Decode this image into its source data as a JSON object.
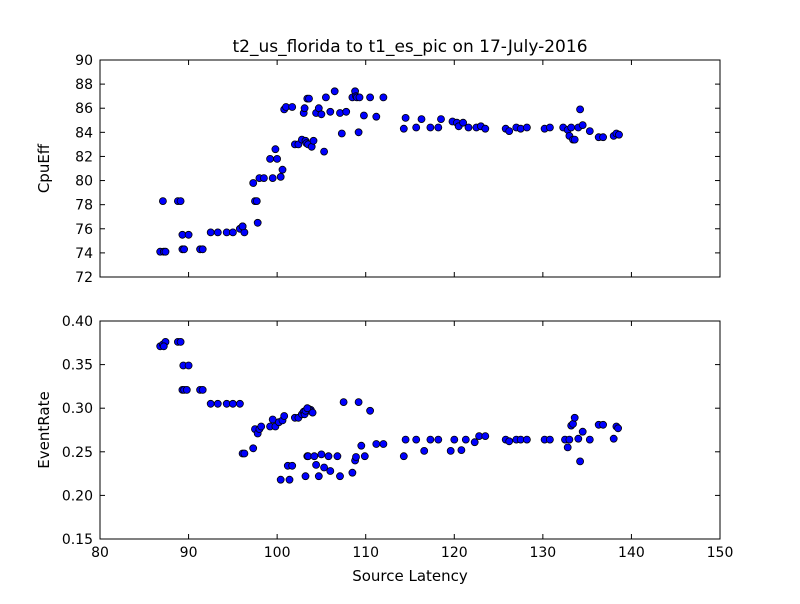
{
  "chart_data": [
    {
      "type": "scatter",
      "title": "t2_us_florida to t1_es_pic on 17-July-2016",
      "xlabel": "",
      "ylabel": "CpuEff",
      "xlim": [
        80,
        150
      ],
      "ylim": [
        72,
        90
      ],
      "xticks": [
        "80",
        "90",
        "100",
        "110",
        "120",
        "130",
        "140",
        "150"
      ],
      "yticks": [
        "72",
        "74",
        "76",
        "78",
        "80",
        "82",
        "84",
        "86",
        "88",
        "90"
      ],
      "show_x_tick_labels": false,
      "marker_color": "#0000ff",
      "x": [
        86.8,
        87.2,
        87.4,
        87.1,
        88.8,
        89.1,
        89.3,
        89.3,
        89.5,
        90.0,
        91.3,
        91.6,
        92.5,
        93.3,
        94.3,
        95.0,
        95.8,
        96.1,
        96.3,
        96.1,
        97.3,
        97.5,
        97.8,
        97.7,
        98.0,
        98.5,
        99.2,
        99.5,
        99.8,
        100.0,
        100.4,
        100.6,
        100.8,
        101.0,
        101.7,
        102.0,
        102.4,
        102.8,
        103.0,
        103.1,
        103.4,
        103.2,
        103.3,
        103.6,
        103.5,
        103.9,
        104.1,
        104.4,
        104.7,
        105.0,
        105.3,
        105.5,
        106.0,
        106.5,
        107.1,
        107.3,
        107.8,
        108.5,
        108.8,
        108.9,
        109.0,
        109.2,
        109.3,
        109.8,
        110.5,
        111.2,
        112.0,
        114.3,
        114.5,
        115.7,
        116.3,
        117.3,
        118.2,
        118.5,
        119.8,
        120.3,
        120.5,
        121.0,
        121.6,
        122.5,
        123.0,
        123.5,
        125.8,
        126.2,
        127.0,
        127.5,
        128.2,
        130.2,
        130.8,
        132.3,
        132.8,
        133.0,
        133.2,
        133.4,
        133.6,
        134.0,
        134.2,
        134.5,
        135.3,
        136.3,
        136.8,
        138.0,
        138.3,
        138.6
      ],
      "y": [
        74.1,
        74.1,
        74.1,
        78.3,
        78.3,
        78.3,
        74.3,
        75.5,
        74.3,
        75.5,
        74.3,
        74.3,
        75.7,
        75.7,
        75.7,
        75.7,
        76.0,
        76.2,
        75.7,
        76.2,
        79.8,
        78.3,
        76.5,
        78.3,
        80.2,
        80.2,
        81.8,
        80.2,
        82.6,
        81.8,
        80.3,
        80.9,
        85.9,
        86.1,
        86.1,
        83.0,
        83.0,
        83.4,
        85.6,
        86.0,
        86.8,
        83.3,
        83.1,
        86.8,
        83.0,
        82.8,
        83.3,
        85.6,
        86.0,
        85.5,
        82.4,
        86.9,
        85.7,
        87.4,
        85.6,
        83.9,
        85.7,
        86.9,
        87.4,
        87.0,
        86.9,
        84.0,
        86.9,
        85.4,
        86.9,
        85.3,
        86.9,
        84.3,
        85.2,
        84.4,
        85.1,
        84.4,
        84.4,
        85.1,
        84.9,
        84.8,
        84.5,
        84.8,
        84.4,
        84.4,
        84.5,
        84.3,
        84.3,
        84.1,
        84.4,
        84.3,
        84.4,
        84.3,
        84.4,
        84.4,
        84.2,
        83.7,
        84.4,
        83.4,
        83.4,
        84.4,
        85.9,
        84.6,
        84.1,
        83.6,
        83.6,
        83.7,
        83.9,
        83.8
      ]
    },
    {
      "type": "scatter",
      "title": "",
      "xlabel": "Source Latency",
      "ylabel": "EventRate",
      "xlim": [
        80,
        150
      ],
      "ylim": [
        0.15,
        0.4
      ],
      "xticks": [
        "80",
        "90",
        "100",
        "110",
        "120",
        "130",
        "140",
        "150"
      ],
      "yticks": [
        "0.15",
        "0.20",
        "0.25",
        "0.30",
        "0.35",
        "0.40"
      ],
      "show_x_tick_labels": true,
      "marker_color": "#0000ff",
      "x": [
        86.8,
        87.1,
        87.4,
        87.2,
        88.8,
        89.1,
        89.3,
        89.4,
        89.5,
        90.0,
        89.8,
        91.3,
        91.6,
        92.5,
        93.3,
        94.3,
        95.0,
        95.8,
        96.1,
        96.3,
        97.3,
        97.5,
        97.8,
        98.0,
        98.2,
        99.2,
        99.5,
        99.8,
        100.2,
        100.4,
        100.6,
        100.8,
        101.2,
        101.4,
        101.7,
        102.0,
        102.4,
        102.8,
        103.0,
        103.2,
        103.4,
        103.6,
        103.8,
        103.1,
        103.5,
        103.7,
        104.0,
        103.2,
        103.4,
        104.2,
        104.4,
        104.7,
        105.0,
        105.3,
        105.8,
        106.0,
        106.8,
        107.1,
        107.5,
        108.5,
        108.8,
        108.9,
        109.2,
        109.5,
        109.9,
        110.5,
        111.2,
        112.0,
        114.3,
        114.5,
        115.7,
        116.6,
        117.3,
        118.2,
        119.6,
        120.0,
        120.8,
        121.3,
        122.3,
        122.8,
        123.5,
        125.8,
        126.2,
        127.0,
        127.5,
        128.2,
        130.2,
        130.8,
        132.5,
        132.8,
        133.0,
        133.2,
        133.4,
        133.6,
        134.0,
        134.2,
        134.5,
        135.3,
        136.3,
        136.8,
        138.0,
        138.3,
        138.5
      ],
      "y": [
        0.371,
        0.373,
        0.376,
        0.371,
        0.376,
        0.376,
        0.321,
        0.349,
        0.321,
        0.349,
        0.321,
        0.321,
        0.321,
        0.305,
        0.305,
        0.305,
        0.305,
        0.305,
        0.248,
        0.248,
        0.254,
        0.276,
        0.271,
        0.276,
        0.279,
        0.279,
        0.287,
        0.279,
        0.284,
        0.218,
        0.286,
        0.291,
        0.234,
        0.218,
        0.234,
        0.289,
        0.289,
        0.293,
        0.296,
        0.222,
        0.245,
        0.299,
        0.298,
        0.293,
        0.245,
        0.297,
        0.295,
        0.297,
        0.3,
        0.245,
        0.235,
        0.222,
        0.247,
        0.232,
        0.245,
        0.228,
        0.245,
        0.222,
        0.307,
        0.226,
        0.24,
        0.244,
        0.307,
        0.257,
        0.245,
        0.297,
        0.259,
        0.259,
        0.245,
        0.264,
        0.264,
        0.251,
        0.264,
        0.264,
        0.251,
        0.264,
        0.252,
        0.264,
        0.261,
        0.268,
        0.268,
        0.264,
        0.262,
        0.264,
        0.264,
        0.264,
        0.264,
        0.264,
        0.264,
        0.255,
        0.264,
        0.28,
        0.282,
        0.289,
        0.265,
        0.239,
        0.273,
        0.264,
        0.281,
        0.281,
        0.265,
        0.279,
        0.277
      ]
    }
  ]
}
